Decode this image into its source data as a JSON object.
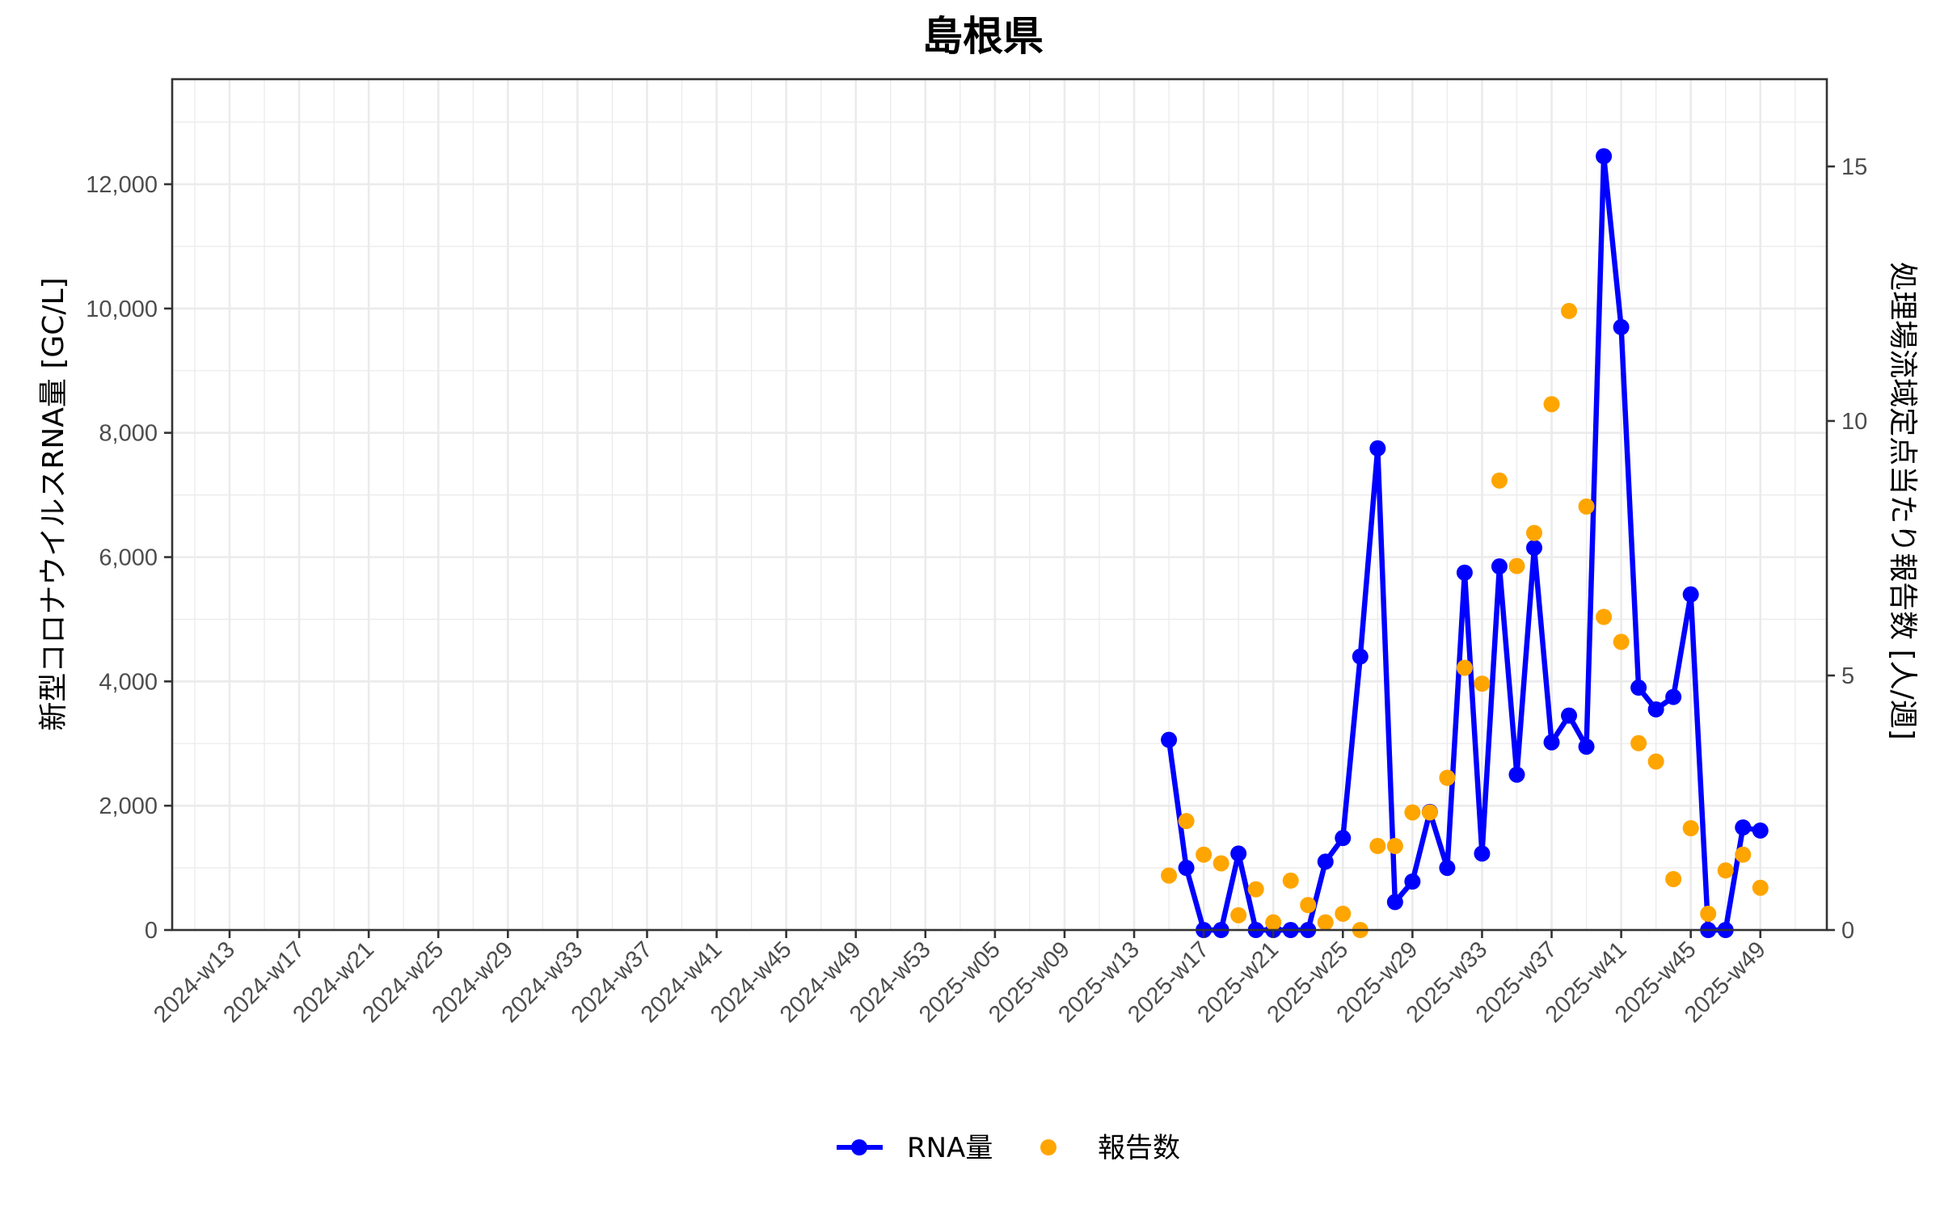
{
  "chart_data": {
    "type": "line",
    "title": "島根県",
    "xlabel": "",
    "ylabel": "新型コロナウイルスRNA量 [GC/L]",
    "y2label": "処理場流域定点当たり報告数 [人/週]",
    "ylim": [
      0,
      13600
    ],
    "y2lim": [
      0,
      16.6
    ],
    "yticks": [
      0,
      2000,
      4000,
      6000,
      8000,
      10000,
      12000
    ],
    "ytick_labels": [
      "0",
      "2,000",
      "4,000",
      "6,000",
      "8,000",
      "10,000",
      "12,000"
    ],
    "y2ticks": [
      0,
      5,
      10,
      15
    ],
    "y2tick_labels": [
      "0",
      "5",
      "10",
      "15"
    ],
    "xtick_labels": [
      "2024-w13",
      "2024-w17",
      "2024-w21",
      "2024-w25",
      "2024-w29",
      "2024-w33",
      "2024-w37",
      "2024-w41",
      "2024-w45",
      "2024-w49",
      "2024-w53",
      "2025-w05",
      "2025-w09",
      "2025-w13",
      "2025-w17",
      "2025-w21",
      "2025-w25",
      "2025-w29",
      "2025-w33",
      "2025-w37",
      "2025-w41",
      "2025-w45",
      "2025-w49"
    ],
    "grid": true,
    "legend_position": "bottom",
    "x": [
      "2025-w14",
      "2025-w15",
      "2025-w16",
      "2025-w17",
      "2025-w18",
      "2025-w19",
      "2025-w20",
      "2025-w21",
      "2025-w22",
      "2025-w23",
      "2025-w24",
      "2025-w25",
      "2025-w26",
      "2025-w27",
      "2025-w28",
      "2025-w29",
      "2025-w30",
      "2025-w31",
      "2025-w32",
      "2025-w33",
      "2025-w34",
      "2025-w35",
      "2025-w36",
      "2025-w37",
      "2025-w38",
      "2025-w39",
      "2025-w40",
      "2025-w41",
      "2025-w42",
      "2025-w43",
      "2025-w44",
      "2025-w45",
      "2025-w46",
      "2025-w47",
      "2025-w48"
    ],
    "series": [
      {
        "name": "RNA量",
        "axis": "left",
        "style": "line+points",
        "color": "#0000FF",
        "values": [
          3060,
          1000,
          0,
          0,
          1230,
          0,
          0,
          0,
          0,
          1100,
          1480,
          4400,
          7750,
          450,
          780,
          1900,
          1000,
          5750,
          1230,
          5850,
          2500,
          6150,
          3020,
          3450,
          2950,
          12450,
          9700,
          3900,
          3550,
          3750,
          5400,
          0,
          0,
          1650,
          1600
        ]
      },
      {
        "name": "報告数",
        "axis": "right",
        "style": "points",
        "color": "#FFA500",
        "values": [
          1.07,
          2.14,
          1.48,
          1.31,
          0.29,
          0.8,
          0.15,
          0.97,
          0.49,
          0.15,
          0.32,
          0.0,
          1.65,
          1.65,
          2.31,
          2.31,
          2.99,
          5.15,
          4.84,
          8.83,
          7.15,
          7.8,
          10.33,
          12.16,
          8.32,
          6.15,
          5.66,
          3.67,
          3.31,
          1.0,
          2.0,
          0.32,
          1.17,
          1.48,
          0.83
        ]
      }
    ]
  },
  "legend": {
    "items": [
      {
        "label": "RNA量",
        "color": "#0000FF",
        "symbol": "line-point"
      },
      {
        "label": "報告数",
        "color": "#FFA500",
        "symbol": "point"
      }
    ]
  },
  "colors": {
    "rna": "#0000FF",
    "reports": "#FFA500",
    "grid": "#EBEBEB",
    "frame": "#333333",
    "tick_text": "#4D4D4D"
  }
}
